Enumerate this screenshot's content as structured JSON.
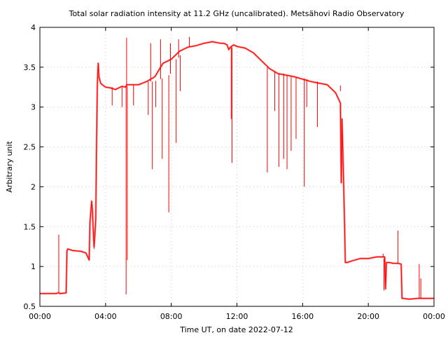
{
  "chart_data": {
    "type": "line",
    "title": "Total solar radiation intensity at 11.2 GHz (uncalibrated). Metsähovi Radio Observatory",
    "xlabel": "Time UT, on date 2022-07-12",
    "ylabel": "Arbitrary unit",
    "xlim": [
      0,
      24
    ],
    "ylim": [
      0.5,
      4
    ],
    "grid": true,
    "legend": "none",
    "colors": {
      "series": "#ff0000",
      "grid": "#cccccc",
      "axes": "#000000"
    },
    "x_ticks": [
      {
        "value": 0,
        "label": "00:00"
      },
      {
        "value": 4,
        "label": "04:00"
      },
      {
        "value": 8,
        "label": "08:00"
      },
      {
        "value": 12,
        "label": "12:00"
      },
      {
        "value": 16,
        "label": "16:00"
      },
      {
        "value": 20,
        "label": "20:00"
      },
      {
        "value": 24,
        "label": "00:00"
      }
    ],
    "y_ticks": [
      {
        "value": 0.5,
        "label": "0.5"
      },
      {
        "value": 1,
        "label": "1"
      },
      {
        "value": 1.5,
        "label": "1.5"
      },
      {
        "value": 2,
        "label": "2"
      },
      {
        "value": 2.5,
        "label": "2.5"
      },
      {
        "value": 3,
        "label": "3"
      },
      {
        "value": 3.5,
        "label": "3.5"
      },
      {
        "value": 4,
        "label": "4"
      }
    ],
    "series": [
      {
        "x": [
          0.0,
          0.5,
          1.0,
          1.1,
          1.15,
          1.2,
          1.25,
          1.6,
          1.65,
          1.7,
          2.0,
          2.5,
          2.8,
          3.0,
          3.05,
          3.15,
          3.2,
          3.25,
          3.3,
          3.35,
          3.4,
          3.45,
          3.5,
          3.55,
          3.6,
          3.7,
          3.8,
          4.0,
          4.3,
          4.6,
          5.0,
          5.2,
          5.3,
          5.5,
          6.0,
          6.5,
          7.0,
          7.5,
          8.0,
          8.5,
          9.0,
          9.5,
          10.0,
          10.5,
          11.0,
          11.2,
          11.4,
          11.5,
          11.6,
          11.8,
          12.0,
          12.5,
          13.0,
          13.5,
          14.0,
          14.5,
          15.0,
          15.5,
          16.0,
          16.5,
          17.0,
          17.5,
          18.0,
          18.3,
          18.35,
          18.4,
          18.45,
          18.55,
          18.6,
          18.7,
          19.0,
          19.5,
          20.0,
          20.5,
          20.9,
          21.0,
          21.05,
          21.1,
          21.3,
          21.5,
          21.8,
          22.0,
          22.05,
          22.1,
          22.5,
          23.0,
          23.5,
          24.0
        ],
        "y": [
          0.66,
          0.66,
          0.66,
          0.67,
          0.67,
          0.66,
          0.66,
          0.67,
          1.2,
          1.22,
          1.2,
          1.19,
          1.17,
          1.08,
          1.55,
          1.82,
          1.7,
          1.45,
          1.25,
          1.4,
          1.6,
          2.5,
          3.3,
          3.55,
          3.38,
          3.3,
          3.28,
          3.25,
          3.24,
          3.22,
          3.26,
          3.25,
          3.28,
          3.28,
          3.28,
          3.32,
          3.38,
          3.55,
          3.6,
          3.7,
          3.75,
          3.77,
          3.8,
          3.82,
          3.8,
          3.8,
          3.78,
          3.72,
          3.75,
          3.78,
          3.76,
          3.74,
          3.68,
          3.58,
          3.48,
          3.42,
          3.4,
          3.38,
          3.35,
          3.32,
          3.3,
          3.28,
          3.18,
          3.05,
          2.05,
          2.85,
          2.45,
          1.55,
          1.05,
          1.05,
          1.07,
          1.1,
          1.1,
          1.12,
          1.12,
          1.12,
          0.72,
          1.05,
          1.05,
          1.04,
          1.04,
          1.03,
          0.6,
          0.6,
          0.59,
          0.6,
          0.6,
          0.6
        ]
      }
    ],
    "spikes": [
      {
        "x": 1.15,
        "base": 0.67,
        "tip": 1.4
      },
      {
        "x": 3.3,
        "base": 1.3,
        "tip": 1.22
      },
      {
        "x": 4.4,
        "base": 3.25,
        "tip": 3.02
      },
      {
        "x": 5.0,
        "base": 3.25,
        "tip": 3.0
      },
      {
        "x": 5.25,
        "base": 3.26,
        "tip": 0.65
      },
      {
        "x": 5.28,
        "base": 3.26,
        "tip": 3.87
      },
      {
        "x": 5.32,
        "base": 3.26,
        "tip": 1.08
      },
      {
        "x": 5.7,
        "base": 3.28,
        "tip": 3.02
      },
      {
        "x": 6.6,
        "base": 3.32,
        "tip": 2.9
      },
      {
        "x": 6.75,
        "base": 3.32,
        "tip": 3.8
      },
      {
        "x": 6.85,
        "base": 3.32,
        "tip": 2.22
      },
      {
        "x": 7.05,
        "base": 3.33,
        "tip": 3.0
      },
      {
        "x": 7.35,
        "base": 3.35,
        "tip": 3.85
      },
      {
        "x": 7.45,
        "base": 3.36,
        "tip": 2.35
      },
      {
        "x": 7.85,
        "base": 3.4,
        "tip": 1.68
      },
      {
        "x": 7.95,
        "base": 3.42,
        "tip": 3.8
      },
      {
        "x": 8.3,
        "base": 3.6,
        "tip": 2.55
      },
      {
        "x": 8.45,
        "base": 3.62,
        "tip": 3.85
      },
      {
        "x": 8.55,
        "base": 3.65,
        "tip": 3.2
      },
      {
        "x": 9.1,
        "base": 3.75,
        "tip": 3.88
      },
      {
        "x": 11.65,
        "base": 3.75,
        "tip": 2.85
      },
      {
        "x": 11.7,
        "base": 3.75,
        "tip": 2.3
      },
      {
        "x": 13.85,
        "base": 3.5,
        "tip": 2.18
      },
      {
        "x": 14.3,
        "base": 3.45,
        "tip": 2.95
      },
      {
        "x": 14.55,
        "base": 3.42,
        "tip": 2.25
      },
      {
        "x": 14.85,
        "base": 3.42,
        "tip": 2.35
      },
      {
        "x": 15.05,
        "base": 3.4,
        "tip": 2.22
      },
      {
        "x": 15.3,
        "base": 3.38,
        "tip": 2.45
      },
      {
        "x": 15.6,
        "base": 3.37,
        "tip": 2.6
      },
      {
        "x": 16.1,
        "base": 3.36,
        "tip": 2.0
      },
      {
        "x": 16.25,
        "base": 3.35,
        "tip": 3.0
      },
      {
        "x": 16.9,
        "base": 3.32,
        "tip": 2.75
      },
      {
        "x": 18.3,
        "base": 3.2,
        "tip": 3.27
      },
      {
        "x": 20.9,
        "base": 1.12,
        "tip": 1.16
      },
      {
        "x": 20.95,
        "base": 1.1,
        "tip": 0.7
      },
      {
        "x": 21.8,
        "base": 1.04,
        "tip": 1.45
      },
      {
        "x": 23.1,
        "base": 0.6,
        "tip": 1.03
      },
      {
        "x": 23.2,
        "base": 0.6,
        "tip": 0.85
      }
    ]
  }
}
